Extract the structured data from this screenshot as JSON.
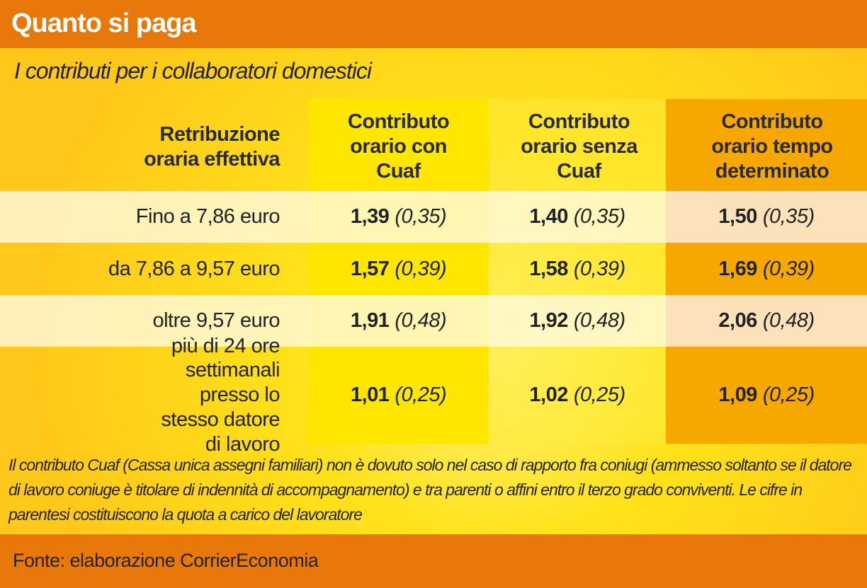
{
  "title": "Quanto si paga",
  "subtitle": "I contributi per i collaboratori domestici",
  "chart_data": {
    "type": "table",
    "columns": [
      "Retribuzione oraria effettiva",
      "Contributo orario con Cuaf",
      "Contributo orario senza Cuaf",
      "Contributo orario tempo determinato"
    ],
    "rows": [
      {
        "label": "Fino  a 7,86 euro",
        "values": [
          {
            "v": "1,39",
            "q": "(0,35)"
          },
          {
            "v": "1,40",
            "q": "(0,35)"
          },
          {
            "v": "1,50",
            "q": "(0,35)"
          }
        ]
      },
      {
        "label": "da 7,86 a 9,57 euro",
        "values": [
          {
            "v": "1,57",
            "q": "(0,39)"
          },
          {
            "v": "1,58",
            "q": "(0,39)"
          },
          {
            "v": "1,69",
            "q": "(0,39)"
          }
        ]
      },
      {
        "label": "oltre 9,57 euro",
        "values": [
          {
            "v": "1,91",
            "q": "(0,48)"
          },
          {
            "v": "1,92",
            "q": "(0,48)"
          },
          {
            "v": "2,06",
            "q": "(0,48)"
          }
        ]
      },
      {
        "label": "più di 24 ore settimanali presso lo stesso datore di lavoro",
        "values": [
          {
            "v": "1,01",
            "q": "(0,25)"
          },
          {
            "v": "1,02",
            "q": "(0,25)"
          },
          {
            "v": "1,09",
            "q": "(0,25)"
          }
        ]
      }
    ]
  },
  "note": "Il contributo Cuaf  (Cassa unica assegni familiari) non è dovuto solo nel caso di rapporto  fra coniugi (ammesso soltanto se il datore di lavoro coniuge è titolare  di indennità di accompagnamento) e tra parenti o affini entro  il terzo grado conviventi. Le cifre in parentesi costituiscono la quota a carico del lavoratore",
  "source": "Fonte: elaborazione CorrierEconomia",
  "colors": {
    "orange_bar": "#e8780a",
    "yellow": "#ffe600",
    "orange_col": "#f7a800"
  }
}
